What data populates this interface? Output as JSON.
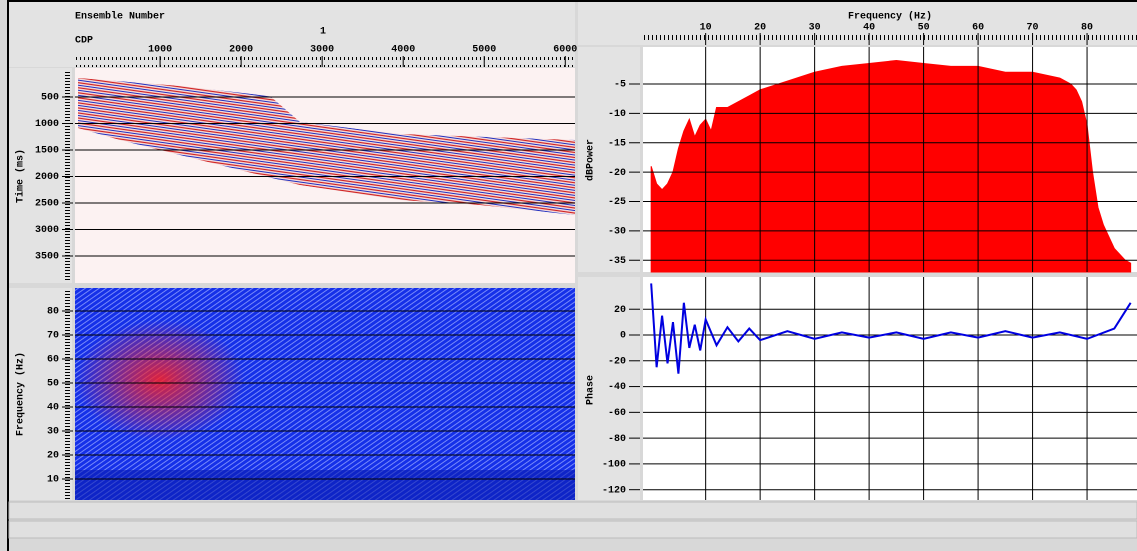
{
  "chart_data": [
    {
      "type": "seismic-section",
      "title": "Ensemble Number",
      "ensemble": 1,
      "xlabel": "CDP",
      "ylabel": "Time (ms)",
      "xlim": [
        -50,
        6120
      ],
      "xticks": [
        1000,
        2000,
        3000,
        4000,
        5000,
        6000
      ],
      "ylim": [
        0,
        4000
      ],
      "yticks": [
        500,
        1000,
        1500,
        2000,
        2500,
        3000,
        3500
      ]
    },
    {
      "type": "spectrogram",
      "ylabel": "Frequency (Hz)",
      "ylim": [
        0,
        90
      ],
      "yticks": [
        10,
        20,
        30,
        40,
        50,
        60,
        70,
        80
      ]
    },
    {
      "type": "area",
      "xlabel": "Frequency (Hz)",
      "ylabel": "dBPower",
      "color": "#ff0000",
      "x": [
        0,
        1,
        2,
        3,
        4,
        5,
        6,
        7,
        8,
        9,
        10,
        11,
        12,
        14,
        16,
        18,
        20,
        25,
        30,
        35,
        40,
        45,
        50,
        55,
        60,
        65,
        70,
        75,
        77,
        78,
        79,
        80,
        81,
        82,
        83,
        84,
        85,
        86,
        87,
        88
      ],
      "values": [
        -19,
        -22,
        -23,
        -22,
        -20,
        -16,
        -13,
        -11,
        -14,
        -12,
        -11,
        -13,
        -9,
        -9,
        -8,
        -7,
        -6,
        -4.5,
        -3,
        -2,
        -1.5,
        -1,
        -1.5,
        -2,
        -2,
        -3,
        -3,
        -4,
        -5,
        -6,
        -8,
        -12,
        -20,
        -26,
        -29,
        -31,
        -33,
        -34,
        -35,
        -35.5
      ],
      "xlim": [
        -1.5,
        88.8
      ],
      "xticks": [
        10,
        20,
        30,
        40,
        50,
        60,
        70,
        80
      ],
      "ylim": [
        -37,
        1.3
      ],
      "yticks": [
        -5,
        -10,
        -15,
        -20,
        -25,
        -30,
        -35
      ]
    },
    {
      "type": "line",
      "ylabel": "Phase",
      "color": "#0000e0",
      "x": [
        0,
        1,
        2,
        3,
        4,
        5,
        6,
        7,
        8,
        9,
        10,
        12,
        14,
        16,
        18,
        20,
        25,
        30,
        35,
        40,
        45,
        50,
        55,
        60,
        65,
        70,
        75,
        80,
        85,
        88
      ],
      "values": [
        40,
        -25,
        15,
        -22,
        10,
        -30,
        25,
        -10,
        8,
        -12,
        12,
        -8,
        6,
        -5,
        5,
        -4,
        3,
        -3,
        2,
        -2,
        2,
        -3,
        2,
        -2,
        3,
        -2,
        2,
        -3,
        5,
        25
      ],
      "ylim": [
        -128,
        45
      ],
      "yticks": [
        20,
        0,
        -20,
        -40,
        -60,
        -80,
        -100,
        -120
      ]
    }
  ]
}
